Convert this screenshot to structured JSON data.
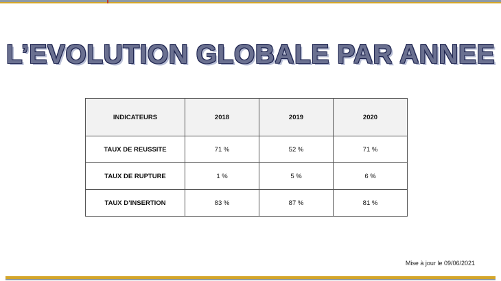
{
  "title": "L’EVOLUTION GLOBALE PAR ANNEE",
  "table": {
    "header": [
      "INDICATEURS",
      "2018",
      "2019",
      "2020"
    ],
    "rows": [
      {
        "label": "TAUX DE REUSSITE",
        "values": [
          "71 %",
          "52 %",
          "71 %"
        ]
      },
      {
        "label": "TAUX DE RUPTURE",
        "values": [
          "1 %",
          "5 %",
          "6 %"
        ]
      },
      {
        "label": "TAUX D’INSERTION",
        "values": [
          "83 %",
          "87 %",
          "81 %"
        ]
      }
    ]
  },
  "footer": {
    "update_note": "Mise à jour le 09/06/2021"
  },
  "colors": {
    "accent_gold": "#d4a62a",
    "accent_grey": "#8d9aa6",
    "title_fill": "#6a7090",
    "title_outline": "#1f2550"
  }
}
